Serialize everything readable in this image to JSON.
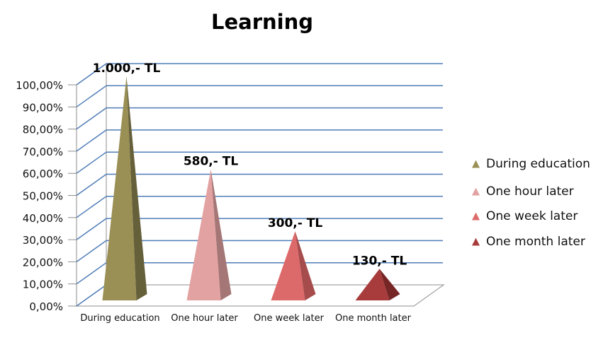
{
  "chart_data": {
    "type": "bar",
    "shape": "pyramid-3d",
    "title": "Learning",
    "categories": [
      "During education",
      "One hour later",
      "One week later",
      "One month later"
    ],
    "values": [
      1.0,
      0.58,
      0.3,
      0.13
    ],
    "data_labels": [
      "1.000,- TL",
      "580,- TL",
      "300,- TL",
      "130,- TL"
    ],
    "y_ticks": [
      "0,00%",
      "10,00%",
      "20,00%",
      "30,00%",
      "40,00%",
      "50,00%",
      "60,00%",
      "70,00%",
      "80,00%",
      "90,00%",
      "100,00%"
    ],
    "ylim": [
      0,
      1
    ],
    "grid": true,
    "legend_position": "right",
    "legend": [
      {
        "label": "During education",
        "color": "#9a8f55"
      },
      {
        "label": "One hour later",
        "color": "#e3a2a2"
      },
      {
        "label": "One week later",
        "color": "#dd6a6a"
      },
      {
        "label": "One month later",
        "color": "#a83c3c"
      }
    ],
    "colors": {
      "front": [
        "#9a8f55",
        "#e3a2a2",
        "#dd6a6a",
        "#a83c3c"
      ],
      "side": [
        "#65603a",
        "#a57676",
        "#a64c4c",
        "#772626"
      ],
      "gridline": "#4f7db8",
      "floor": "#8c8c8c"
    }
  }
}
